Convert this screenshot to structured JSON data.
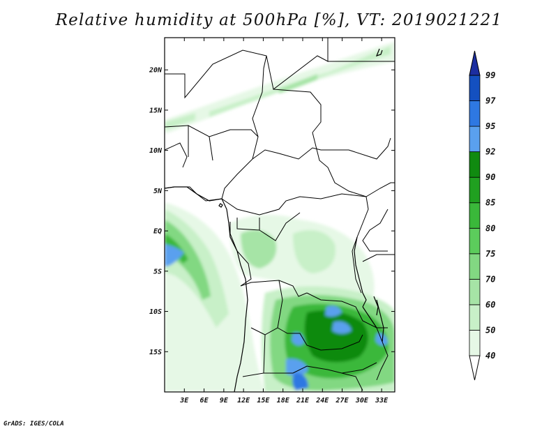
{
  "title": "Relative humidity at 500hPa [%], VT: 2019021221",
  "footer": "GrADS: IGES/COLA",
  "map": {
    "lon_range": [
      0,
      35
    ],
    "lat_range": [
      -20,
      24
    ],
    "lat_ticks": [
      {
        "value": 20,
        "label": "20N"
      },
      {
        "value": 15,
        "label": "15N"
      },
      {
        "value": 10,
        "label": "10N"
      },
      {
        "value": 5,
        "label": "5N"
      },
      {
        "value": 0,
        "label": "EQ"
      },
      {
        "value": -5,
        "label": "5S"
      },
      {
        "value": -10,
        "label": "10S"
      },
      {
        "value": -15,
        "label": "15S"
      }
    ],
    "lon_ticks": [
      {
        "value": 3,
        "label": "3E"
      },
      {
        "value": 6,
        "label": "6E"
      },
      {
        "value": 9,
        "label": "9E"
      },
      {
        "value": 12,
        "label": "12E"
      },
      {
        "value": 15,
        "label": "15E"
      },
      {
        "value": 18,
        "label": "18E"
      },
      {
        "value": 21,
        "label": "21E"
      },
      {
        "value": 24,
        "label": "24E"
      },
      {
        "value": 27,
        "label": "27E"
      },
      {
        "value": 30,
        "label": "30E"
      },
      {
        "value": 33,
        "label": "33E"
      }
    ]
  },
  "colorbar": {
    "levels": [
      "40",
      "50",
      "60",
      "70",
      "75",
      "80",
      "85",
      "90",
      "92",
      "95",
      "97",
      "99"
    ],
    "colors": [
      "#ffffff",
      "#e6f8e6",
      "#c8f0c8",
      "#a6e4a6",
      "#82d882",
      "#5ccc5c",
      "#3ab83a",
      "#20a020",
      "#108a10",
      "#5aa0ee",
      "#2e78e2",
      "#1450c0",
      "#1c2ea0"
    ]
  }
}
